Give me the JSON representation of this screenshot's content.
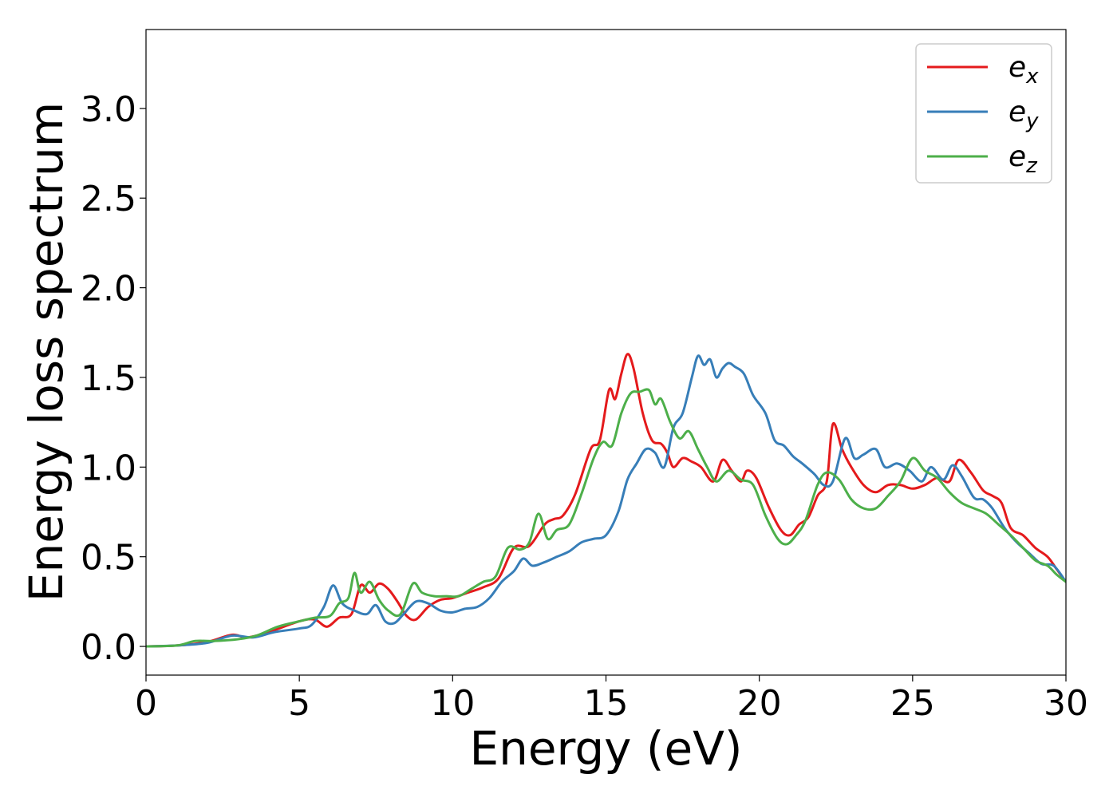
{
  "chart_data": {
    "type": "line",
    "xlabel": "Energy (eV)",
    "ylabel": "Energy loss spectrum",
    "xlim": [
      0,
      30
    ],
    "ylim": [
      -0.16,
      3.44
    ],
    "xticks": [
      0,
      5,
      10,
      15,
      20,
      25,
      30
    ],
    "yticks": [
      0.0,
      0.5,
      1.0,
      1.5,
      2.0,
      2.5,
      3.0
    ],
    "xtick_labels": [
      "0",
      "5",
      "10",
      "15",
      "20",
      "25",
      "30"
    ],
    "ytick_labels": [
      "0.0",
      "0.5",
      "1.0",
      "1.5",
      "2.0",
      "2.5",
      "3.0"
    ],
    "grid": false,
    "legend_position": "top-right",
    "series": [
      {
        "name": "e_x",
        "label_main": "e",
        "label_sub": "x",
        "color": "#e41a1c",
        "points": [
          [
            0,
            0
          ],
          [
            1,
            0.005
          ],
          [
            2,
            0.025
          ],
          [
            2.8,
            0.065
          ],
          [
            3.3,
            0.05
          ],
          [
            4,
            0.08
          ],
          [
            5,
            0.14
          ],
          [
            5.5,
            0.15
          ],
          [
            5.9,
            0.11
          ],
          [
            6.3,
            0.16
          ],
          [
            6.7,
            0.18
          ],
          [
            7.0,
            0.34
          ],
          [
            7.3,
            0.3
          ],
          [
            7.6,
            0.35
          ],
          [
            7.9,
            0.32
          ],
          [
            8.2,
            0.25
          ],
          [
            8.5,
            0.17
          ],
          [
            8.8,
            0.15
          ],
          [
            9.2,
            0.22
          ],
          [
            9.6,
            0.26
          ],
          [
            10.0,
            0.27
          ],
          [
            10.5,
            0.3
          ],
          [
            11.0,
            0.33
          ],
          [
            11.5,
            0.38
          ],
          [
            12.0,
            0.55
          ],
          [
            12.5,
            0.56
          ],
          [
            13.0,
            0.68
          ],
          [
            13.3,
            0.71
          ],
          [
            13.6,
            0.73
          ],
          [
            14.0,
            0.85
          ],
          [
            14.5,
            1.1
          ],
          [
            14.8,
            1.15
          ],
          [
            15.1,
            1.43
          ],
          [
            15.3,
            1.38
          ],
          [
            15.5,
            1.52
          ],
          [
            15.7,
            1.63
          ],
          [
            15.9,
            1.55
          ],
          [
            16.2,
            1.3
          ],
          [
            16.5,
            1.15
          ],
          [
            16.8,
            1.13
          ],
          [
            17.0,
            1.08
          ],
          [
            17.2,
            1.0
          ],
          [
            17.5,
            1.05
          ],
          [
            17.8,
            1.03
          ],
          [
            18.1,
            1.0
          ],
          [
            18.5,
            0.92
          ],
          [
            18.8,
            1.04
          ],
          [
            19.1,
            0.98
          ],
          [
            19.4,
            0.92
          ],
          [
            19.6,
            0.98
          ],
          [
            19.9,
            0.94
          ],
          [
            20.3,
            0.78
          ],
          [
            20.7,
            0.65
          ],
          [
            21.0,
            0.62
          ],
          [
            21.3,
            0.68
          ],
          [
            21.6,
            0.72
          ],
          [
            21.9,
            0.84
          ],
          [
            22.2,
            0.92
          ],
          [
            22.4,
            1.24
          ],
          [
            22.7,
            1.1
          ],
          [
            23.0,
            1.0
          ],
          [
            23.4,
            0.9
          ],
          [
            23.8,
            0.86
          ],
          [
            24.2,
            0.9
          ],
          [
            24.6,
            0.9
          ],
          [
            25.0,
            0.88
          ],
          [
            25.4,
            0.9
          ],
          [
            25.8,
            0.94
          ],
          [
            26.2,
            0.92
          ],
          [
            26.5,
            1.04
          ],
          [
            26.9,
            0.97
          ],
          [
            27.3,
            0.87
          ],
          [
            27.6,
            0.84
          ],
          [
            27.9,
            0.8
          ],
          [
            28.2,
            0.66
          ],
          [
            28.6,
            0.62
          ],
          [
            29.0,
            0.55
          ],
          [
            29.4,
            0.5
          ],
          [
            29.7,
            0.43
          ],
          [
            30.0,
            0.36
          ]
        ]
      },
      {
        "name": "e_y",
        "label_main": "e",
        "label_sub": "y",
        "color": "#377eb8",
        "points": [
          [
            0,
            0
          ],
          [
            1,
            0.005
          ],
          [
            2,
            0.02
          ],
          [
            2.8,
            0.06
          ],
          [
            3.5,
            0.05
          ],
          [
            4.2,
            0.08
          ],
          [
            5,
            0.1
          ],
          [
            5.4,
            0.12
          ],
          [
            5.8,
            0.22
          ],
          [
            6.1,
            0.34
          ],
          [
            6.4,
            0.24
          ],
          [
            6.8,
            0.2
          ],
          [
            7.2,
            0.18
          ],
          [
            7.5,
            0.23
          ],
          [
            7.8,
            0.14
          ],
          [
            8.1,
            0.13
          ],
          [
            8.4,
            0.18
          ],
          [
            8.8,
            0.25
          ],
          [
            9.2,
            0.24
          ],
          [
            9.6,
            0.2
          ],
          [
            10.0,
            0.19
          ],
          [
            10.4,
            0.21
          ],
          [
            10.8,
            0.22
          ],
          [
            11.2,
            0.27
          ],
          [
            11.6,
            0.36
          ],
          [
            12.0,
            0.42
          ],
          [
            12.3,
            0.49
          ],
          [
            12.6,
            0.45
          ],
          [
            13.0,
            0.47
          ],
          [
            13.4,
            0.5
          ],
          [
            13.8,
            0.53
          ],
          [
            14.2,
            0.58
          ],
          [
            14.6,
            0.6
          ],
          [
            15.0,
            0.62
          ],
          [
            15.4,
            0.75
          ],
          [
            15.7,
            0.93
          ],
          [
            16.0,
            1.02
          ],
          [
            16.3,
            1.1
          ],
          [
            16.6,
            1.08
          ],
          [
            16.9,
            1.0
          ],
          [
            17.2,
            1.22
          ],
          [
            17.5,
            1.3
          ],
          [
            17.8,
            1.5
          ],
          [
            18.0,
            1.62
          ],
          [
            18.2,
            1.57
          ],
          [
            18.4,
            1.6
          ],
          [
            18.6,
            1.5
          ],
          [
            18.8,
            1.55
          ],
          [
            19.0,
            1.58
          ],
          [
            19.2,
            1.56
          ],
          [
            19.5,
            1.52
          ],
          [
            19.8,
            1.4
          ],
          [
            20.2,
            1.3
          ],
          [
            20.5,
            1.15
          ],
          [
            20.8,
            1.12
          ],
          [
            21.1,
            1.06
          ],
          [
            21.4,
            1.02
          ],
          [
            21.8,
            0.96
          ],
          [
            22.1,
            0.9
          ],
          [
            22.4,
            0.92
          ],
          [
            22.8,
            1.16
          ],
          [
            23.1,
            1.05
          ],
          [
            23.4,
            1.07
          ],
          [
            23.8,
            1.1
          ],
          [
            24.1,
            1.0
          ],
          [
            24.5,
            1.02
          ],
          [
            24.9,
            0.98
          ],
          [
            25.3,
            0.92
          ],
          [
            25.6,
            1.0
          ],
          [
            26.0,
            0.93
          ],
          [
            26.3,
            1.01
          ],
          [
            26.6,
            0.95
          ],
          [
            27.0,
            0.83
          ],
          [
            27.3,
            0.82
          ],
          [
            27.6,
            0.77
          ],
          [
            28.0,
            0.66
          ],
          [
            28.4,
            0.58
          ],
          [
            28.8,
            0.52
          ],
          [
            29.2,
            0.46
          ],
          [
            29.6,
            0.45
          ],
          [
            30.0,
            0.36
          ]
        ]
      },
      {
        "name": "e_z",
        "label_main": "e",
        "label_sub": "z",
        "color": "#4daf4a",
        "points": [
          [
            0,
            0
          ],
          [
            1,
            0.005
          ],
          [
            1.6,
            0.03
          ],
          [
            2.2,
            0.03
          ],
          [
            3.0,
            0.04
          ],
          [
            3.6,
            0.06
          ],
          [
            4.3,
            0.11
          ],
          [
            5,
            0.14
          ],
          [
            5.5,
            0.16
          ],
          [
            6.0,
            0.17
          ],
          [
            6.3,
            0.24
          ],
          [
            6.6,
            0.27
          ],
          [
            6.8,
            0.41
          ],
          [
            7.0,
            0.3
          ],
          [
            7.3,
            0.36
          ],
          [
            7.6,
            0.26
          ],
          [
            7.9,
            0.2
          ],
          [
            8.3,
            0.18
          ],
          [
            8.7,
            0.35
          ],
          [
            9.0,
            0.3
          ],
          [
            9.4,
            0.28
          ],
          [
            9.8,
            0.28
          ],
          [
            10.2,
            0.28
          ],
          [
            10.6,
            0.32
          ],
          [
            11.0,
            0.36
          ],
          [
            11.4,
            0.39
          ],
          [
            11.8,
            0.55
          ],
          [
            12.2,
            0.54
          ],
          [
            12.5,
            0.58
          ],
          [
            12.8,
            0.74
          ],
          [
            13.1,
            0.6
          ],
          [
            13.4,
            0.65
          ],
          [
            13.8,
            0.68
          ],
          [
            14.2,
            0.85
          ],
          [
            14.6,
            1.05
          ],
          [
            14.9,
            1.14
          ],
          [
            15.2,
            1.12
          ],
          [
            15.5,
            1.3
          ],
          [
            15.8,
            1.41
          ],
          [
            16.1,
            1.42
          ],
          [
            16.4,
            1.43
          ],
          [
            16.6,
            1.35
          ],
          [
            16.8,
            1.38
          ],
          [
            17.1,
            1.25
          ],
          [
            17.4,
            1.16
          ],
          [
            17.7,
            1.2
          ],
          [
            18.0,
            1.1
          ],
          [
            18.3,
            1.0
          ],
          [
            18.6,
            0.92
          ],
          [
            19.0,
            0.98
          ],
          [
            19.4,
            0.93
          ],
          [
            19.8,
            0.9
          ],
          [
            20.2,
            0.73
          ],
          [
            20.6,
            0.6
          ],
          [
            20.9,
            0.57
          ],
          [
            21.2,
            0.62
          ],
          [
            21.5,
            0.7
          ],
          [
            21.9,
            0.9
          ],
          [
            22.2,
            0.97
          ],
          [
            22.6,
            0.93
          ],
          [
            23.0,
            0.82
          ],
          [
            23.4,
            0.77
          ],
          [
            23.8,
            0.77
          ],
          [
            24.2,
            0.84
          ],
          [
            24.6,
            0.92
          ],
          [
            25.0,
            1.05
          ],
          [
            25.4,
            0.98
          ],
          [
            25.8,
            0.94
          ],
          [
            26.2,
            0.86
          ],
          [
            26.6,
            0.8
          ],
          [
            27.0,
            0.77
          ],
          [
            27.4,
            0.74
          ],
          [
            27.8,
            0.68
          ],
          [
            28.2,
            0.62
          ],
          [
            28.6,
            0.55
          ],
          [
            29.0,
            0.48
          ],
          [
            29.4,
            0.45
          ],
          [
            29.7,
            0.4
          ],
          [
            30.0,
            0.36
          ]
        ]
      }
    ]
  }
}
